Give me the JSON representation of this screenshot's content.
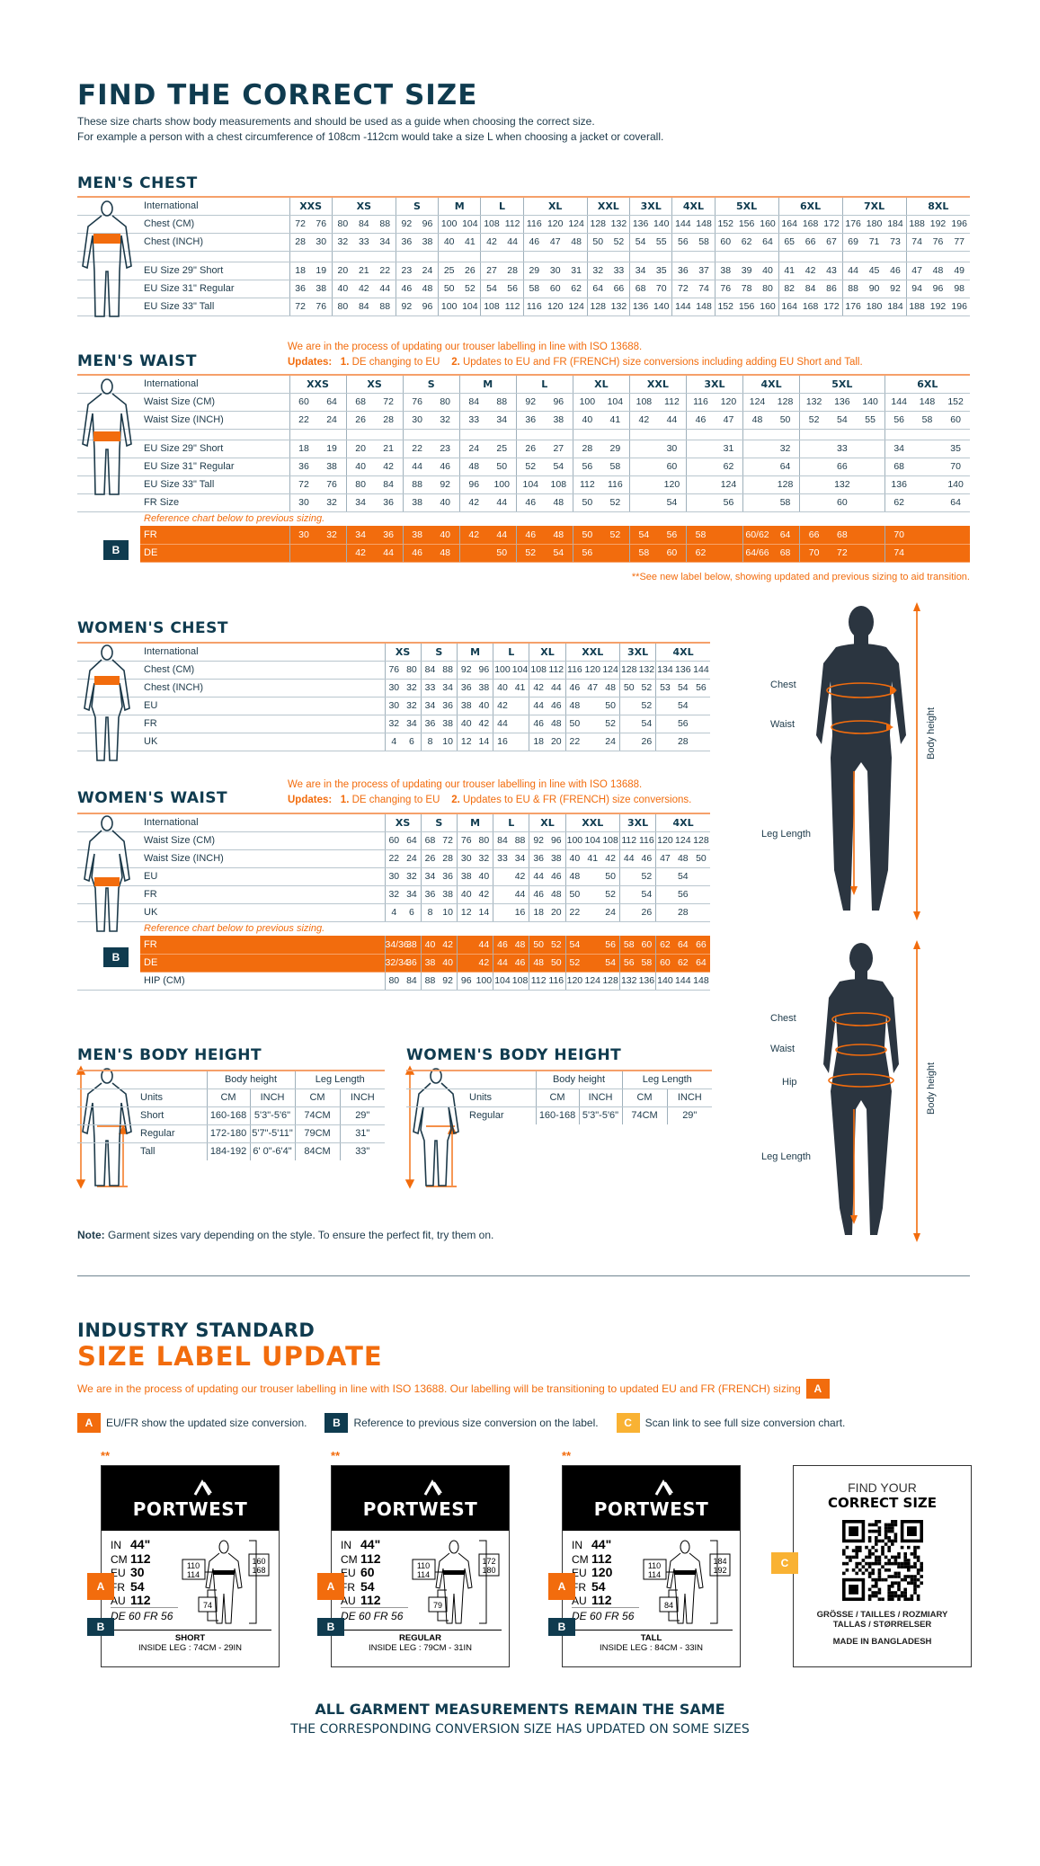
{
  "header": {
    "title": "FIND THE CORRECT SIZE",
    "intro1": "These size charts show body measurements and should be used as a guide when choosing the correct size.",
    "intro2": "For example a person with a chest circumference of 108cm -112cm would take a size L when choosing a jacket or coverall."
  },
  "colors": {
    "navy": "#0f3b4f",
    "orange": "#f26c0d",
    "yellow": "#f9b233"
  },
  "update_note": {
    "line1": "We are in the process of updating our trouser labelling in line with ISO 13688.",
    "updates": "Updates:",
    "u1_num": "1.",
    "u1": "DE changing to EU",
    "u2_num": "2.",
    "u2_men": "Updates to EU and FR (FRENCH) size conversions including adding EU Short and Tall.",
    "u2_women": "Updates to EU & FR (FRENCH) size conversions."
  },
  "reference_note": "Reference chart below to previous sizing.",
  "badge_b": "B",
  "mens_chest": {
    "title": "MEN'S CHEST",
    "header_label": "International",
    "sizes": [
      {
        "label": "XXS",
        "span": 2
      },
      {
        "label": "XS",
        "span": 3
      },
      {
        "label": "S",
        "span": 2
      },
      {
        "label": "M",
        "span": 2
      },
      {
        "label": "L",
        "span": 2
      },
      {
        "label": "XL",
        "span": 3
      },
      {
        "label": "XXL",
        "span": 2
      },
      {
        "label": "3XL",
        "span": 2
      },
      {
        "label": "4XL",
        "span": 2
      },
      {
        "label": "5XL",
        "span": 3
      },
      {
        "label": "6XL",
        "span": 3
      },
      {
        "label": "7XL",
        "span": 3
      },
      {
        "label": "8XL",
        "span": 3
      }
    ],
    "rows": [
      {
        "label": "Chest (CM)",
        "cells": [
          "72",
          "76",
          "80",
          "84",
          "88",
          "92",
          "96",
          "100",
          "104",
          "108",
          "112",
          "116",
          "120",
          "124",
          "128",
          "132",
          "136",
          "140",
          "144",
          "148",
          "152",
          "156",
          "160",
          "164",
          "168",
          "172",
          "176",
          "180",
          "184",
          "188",
          "192",
          "196"
        ]
      },
      {
        "label": "Chest (INCH)",
        "cells": [
          "28",
          "30",
          "32",
          "33",
          "34",
          "36",
          "38",
          "40",
          "41",
          "42",
          "44",
          "46",
          "47",
          "48",
          "50",
          "52",
          "54",
          "55",
          "56",
          "58",
          "60",
          "62",
          "64",
          "65",
          "66",
          "67",
          "69",
          "71",
          "73",
          "74",
          "76",
          "77"
        ]
      },
      {
        "type": "spacer"
      },
      {
        "label": "EU Size 29\" Short",
        "cells": [
          "18",
          "19",
          "20",
          "21",
          "22",
          "23",
          "24",
          "25",
          "26",
          "27",
          "28",
          "29",
          "30",
          "31",
          "32",
          "33",
          "34",
          "35",
          "36",
          "37",
          "38",
          "39",
          "40",
          "41",
          "42",
          "43",
          "44",
          "45",
          "46",
          "47",
          "48",
          "49"
        ]
      },
      {
        "label": "EU Size 31\" Regular",
        "cells": [
          "36",
          "38",
          "40",
          "42",
          "44",
          "46",
          "48",
          "50",
          "52",
          "54",
          "56",
          "58",
          "60",
          "62",
          "64",
          "66",
          "68",
          "70",
          "72",
          "74",
          "76",
          "78",
          "80",
          "82",
          "84",
          "86",
          "88",
          "90",
          "92",
          "94",
          "96",
          "98"
        ]
      },
      {
        "label": "EU Size 33\" Tall",
        "cells": [
          "72",
          "76",
          "80",
          "84",
          "88",
          "92",
          "96",
          "100",
          "104",
          "108",
          "112",
          "116",
          "120",
          "124",
          "128",
          "132",
          "136",
          "140",
          "144",
          "148",
          "152",
          "156",
          "160",
          "164",
          "168",
          "172",
          "176",
          "180",
          "184",
          "188",
          "192",
          "196"
        ]
      }
    ]
  },
  "mens_waist": {
    "title": "MEN'S WAIST",
    "header_label": "International",
    "footnote": "**See new label below, showing updated and previous sizing to aid transition.",
    "sizes": [
      {
        "label": "XXS",
        "span": 2
      },
      {
        "label": "XS",
        "span": 2
      },
      {
        "label": "S",
        "span": 2
      },
      {
        "label": "M",
        "span": 2
      },
      {
        "label": "L",
        "span": 2
      },
      {
        "label": "XL",
        "span": 2
      },
      {
        "label": "XXL",
        "span": 2
      },
      {
        "label": "3XL",
        "span": 2
      },
      {
        "label": "4XL",
        "span": 2
      },
      {
        "label": "5XL",
        "span": 3
      },
      {
        "label": "6XL",
        "span": 3
      }
    ],
    "rows": [
      {
        "label": "Waist Size (CM)",
        "cells": [
          "60",
          "64",
          "68",
          "72",
          "76",
          "80",
          "84",
          "88",
          "92",
          "96",
          "100",
          "104",
          "108",
          "112",
          "116",
          "120",
          "124",
          "128",
          "132",
          "136",
          "140",
          "144",
          "148",
          "152"
        ]
      },
      {
        "label": "Waist Size (INCH)",
        "cells": [
          "22",
          "24",
          "26",
          "28",
          "30",
          "32",
          "33",
          "34",
          "36",
          "38",
          "40",
          "41",
          "42",
          "44",
          "46",
          "47",
          "48",
          "50",
          "52",
          "54",
          "55",
          "56",
          "58",
          "60"
        ]
      },
      {
        "type": "spacer"
      },
      {
        "label": "EU Size 29\" Short",
        "cells": [
          "18",
          "19",
          "20",
          "21",
          "22",
          "23",
          "24",
          "25",
          "26",
          "27",
          "28",
          "29",
          "",
          "30",
          "",
          "31",
          "",
          "32",
          "",
          "33",
          "",
          "34",
          "",
          "35"
        ]
      },
      {
        "label": "EU Size 31\" Regular",
        "cells": [
          "36",
          "38",
          "40",
          "42",
          "44",
          "46",
          "48",
          "50",
          "52",
          "54",
          "56",
          "58",
          "",
          "60",
          "",
          "62",
          "",
          "64",
          "",
          "66",
          "",
          "68",
          "",
          "70"
        ]
      },
      {
        "label": "EU Size 33\" Tall",
        "cells": [
          "72",
          "76",
          "80",
          "84",
          "88",
          "92",
          "96",
          "100",
          "104",
          "108",
          "112",
          "116",
          "",
          "120",
          "",
          "124",
          "",
          "128",
          "",
          "132",
          "",
          "136",
          "",
          "140"
        ]
      },
      {
        "label": "FR Size",
        "cells": [
          "30",
          "32",
          "34",
          "36",
          "38",
          "40",
          "42",
          "44",
          "46",
          "48",
          "50",
          "52",
          "",
          "54",
          "",
          "56",
          "",
          "58",
          "",
          "60",
          "",
          "62",
          "",
          "64"
        ]
      },
      {
        "type": "note"
      },
      {
        "type": "orange",
        "label": "FR",
        "cells": [
          "30",
          "32",
          "34",
          "36",
          "38",
          "40",
          "42",
          "44",
          "46",
          "48",
          "50",
          "52",
          "54",
          "56",
          "58",
          "",
          "60/62",
          "64",
          "66",
          "68",
          "",
          "70",
          "",
          ""
        ]
      },
      {
        "type": "orange",
        "label": "DE",
        "cells": [
          "",
          "",
          "42",
          "44",
          "46",
          "48",
          "",
          "50",
          "52",
          "54",
          "56",
          "",
          "58",
          "60",
          "62",
          "",
          "64/66",
          "68",
          "70",
          "72",
          "",
          "74",
          "",
          ""
        ]
      }
    ]
  },
  "womens_chest": {
    "title": "WOMEN'S CHEST",
    "header_label": "International",
    "sizes": [
      {
        "label": "XS",
        "span": 2
      },
      {
        "label": "S",
        "span": 2
      },
      {
        "label": "M",
        "span": 2
      },
      {
        "label": "L",
        "span": 2
      },
      {
        "label": "XL",
        "span": 2
      },
      {
        "label": "XXL",
        "span": 3
      },
      {
        "label": "3XL",
        "span": 2
      },
      {
        "label": "4XL",
        "span": 3
      }
    ],
    "rows": [
      {
        "label": "Chest (CM)",
        "cells": [
          "76",
          "80",
          "84",
          "88",
          "92",
          "96",
          "100",
          "104",
          "108",
          "112",
          "116",
          "120",
          "124",
          "128",
          "132",
          "134",
          "136",
          "144"
        ]
      },
      {
        "label": "Chest (INCH)",
        "cells": [
          "30",
          "32",
          "33",
          "34",
          "36",
          "38",
          "40",
          "41",
          "42",
          "44",
          "46",
          "47",
          "48",
          "50",
          "52",
          "53",
          "54",
          "56"
        ]
      },
      {
        "label": "EU",
        "cells": [
          "30",
          "32",
          "34",
          "36",
          "38",
          "40",
          "42",
          "",
          "44",
          "46",
          "48",
          "",
          "50",
          "",
          "52",
          "",
          "54",
          ""
        ]
      },
      {
        "label": "FR",
        "cells": [
          "32",
          "34",
          "36",
          "38",
          "40",
          "42",
          "44",
          "",
          "46",
          "48",
          "50",
          "",
          "52",
          "",
          "54",
          "",
          "56",
          ""
        ]
      },
      {
        "label": "UK",
        "cells": [
          "4",
          "6",
          "8",
          "10",
          "12",
          "14",
          "16",
          "",
          "18",
          "20",
          "22",
          "",
          "24",
          "",
          "26",
          "",
          "28",
          ""
        ]
      }
    ]
  },
  "womens_waist": {
    "title": "WOMEN'S WAIST",
    "header_label": "International",
    "sizes": [
      {
        "label": "XS",
        "span": 2
      },
      {
        "label": "S",
        "span": 2
      },
      {
        "label": "M",
        "span": 2
      },
      {
        "label": "L",
        "span": 2
      },
      {
        "label": "XL",
        "span": 2
      },
      {
        "label": "XXL",
        "span": 3
      },
      {
        "label": "3XL",
        "span": 2
      },
      {
        "label": "4XL",
        "span": 3
      }
    ],
    "rows": [
      {
        "label": "Waist Size (CM)",
        "cells": [
          "60",
          "64",
          "68",
          "72",
          "76",
          "80",
          "84",
          "88",
          "92",
          "96",
          "100",
          "104",
          "108",
          "112",
          "116",
          "120",
          "124",
          "128"
        ]
      },
      {
        "label": "Waist Size (INCH)",
        "cells": [
          "22",
          "24",
          "26",
          "28",
          "30",
          "32",
          "33",
          "34",
          "36",
          "38",
          "40",
          "41",
          "42",
          "44",
          "46",
          "47",
          "48",
          "50"
        ]
      },
      {
        "label": "EU",
        "cells": [
          "30",
          "32",
          "34",
          "36",
          "38",
          "40",
          "",
          "42",
          "44",
          "46",
          "48",
          "",
          "50",
          "",
          "52",
          "",
          "54",
          ""
        ]
      },
      {
        "label": "FR",
        "cells": [
          "32",
          "34",
          "36",
          "38",
          "40",
          "42",
          "",
          "44",
          "46",
          "48",
          "50",
          "",
          "52",
          "",
          "54",
          "",
          "56",
          ""
        ]
      },
      {
        "label": "UK",
        "cells": [
          "4",
          "6",
          "8",
          "10",
          "12",
          "14",
          "",
          "16",
          "18",
          "20",
          "22",
          "",
          "24",
          "",
          "26",
          "",
          "28",
          ""
        ]
      },
      {
        "type": "note"
      },
      {
        "type": "orange",
        "label": "FR",
        "cells": [
          "34/36",
          "38",
          "40",
          "42",
          "",
          "44",
          "46",
          "48",
          "50",
          "52",
          "54",
          "",
          "56",
          "58",
          "60",
          "62",
          "64",
          "66"
        ]
      },
      {
        "type": "orange",
        "label": "DE",
        "cells": [
          "32/34",
          "36",
          "38",
          "40",
          "",
          "42",
          "44",
          "46",
          "48",
          "50",
          "52",
          "",
          "54",
          "56",
          "58",
          "60",
          "62",
          "64"
        ]
      },
      {
        "label": "HIP (CM)",
        "cells": [
          "80",
          "84",
          "88",
          "92",
          "96",
          "100",
          "104",
          "108",
          "112",
          "116",
          "120",
          "124",
          "128",
          "132",
          "136",
          "140",
          "144",
          "148"
        ]
      }
    ]
  },
  "mens_height": {
    "title": "MEN'S BODY HEIGHT",
    "body_height": "Body height",
    "leg_length": "Leg Length",
    "units": "Units",
    "cm": "CM",
    "inch": "INCH",
    "rows": [
      {
        "label": "Short",
        "h_cm": "160-168",
        "h_in": "5'3\"-5'6\"",
        "l_cm": "74CM",
        "l_in": "29\""
      },
      {
        "label": "Regular",
        "h_cm": "172-180",
        "h_in": "5'7\"-5'11\"",
        "l_cm": "79CM",
        "l_in": "31\""
      },
      {
        "label": "Tall",
        "h_cm": "184-192",
        "h_in": "6' 0\"-6'4\"",
        "l_cm": "84CM",
        "l_in": "33\""
      }
    ]
  },
  "womens_height": {
    "title": "WOMEN'S BODY HEIGHT",
    "body_height": "Body height",
    "leg_length": "Leg Length",
    "units": "Units",
    "cm": "CM",
    "inch": "INCH",
    "rows": [
      {
        "label": "Regular",
        "h_cm": "160-168",
        "h_in": "5'3\"-5'6\"",
        "l_cm": "74CM",
        "l_in": "29\""
      }
    ]
  },
  "figures": {
    "chest": "Chest",
    "waist": "Waist",
    "hip": "Hip",
    "leg_length": "Leg Length",
    "body_height": "Body height"
  },
  "garment_note": {
    "bold": "Note:",
    "text": " Garment sizes vary depending on the style. To ensure the perfect fit, try them on."
  },
  "label_update": {
    "title1": "INDUSTRY STANDARD",
    "title2": "SIZE LABEL UPDATE",
    "intro": "We are in the process of updating our trouser labelling in line with ISO 13688. Our labelling will be transitioning to updated EU and FR (FRENCH) sizing",
    "badge_a": "A",
    "badge_b": "B",
    "badge_c": "C",
    "legend_a": "EU/FR show the updated size conversion.",
    "legend_b": "Reference to previous size conversion on the label.",
    "legend_c": "Scan link to see full size conversion chart.",
    "stars": "**",
    "brand": "PORTWEST",
    "cards": [
      {
        "in": "44\"",
        "cm": "112",
        "eu": "30",
        "fr": "54",
        "au": "112",
        "prev": "DE 60 FR 56",
        "waist1": "110",
        "waist2": "114",
        "height1": "160",
        "height2": "168",
        "leg": "74",
        "fit": "SHORT",
        "inside_leg": "INSIDE LEG : 74CM - 29IN"
      },
      {
        "in": "44\"",
        "cm": "112",
        "eu": "60",
        "fr": "54",
        "au": "112",
        "prev": "DE 60 FR 56",
        "waist1": "110",
        "waist2": "114",
        "height1": "172",
        "height2": "180",
        "leg": "79",
        "fit": "REGULAR",
        "inside_leg": "INSIDE LEG : 79CM - 31IN"
      },
      {
        "in": "44\"",
        "cm": "112",
        "eu": "120",
        "fr": "54",
        "au": "112",
        "prev": "DE 60 FR 56",
        "waist1": "110",
        "waist2": "114",
        "height1": "184",
        "height2": "192",
        "leg": "84",
        "fit": "TALL",
        "inside_leg": "INSIDE LEG : 84CM - 33IN"
      }
    ],
    "keys": {
      "in": "IN",
      "cm": "CM",
      "eu": "EU",
      "fr": "FR",
      "au": "AU"
    },
    "qr": {
      "find": "FIND YOUR",
      "correct": "CORRECT SIZE",
      "langs1": "GRÖSSE / TAILLES / ROZMIARY",
      "langs2": "TALLAS  / STØRRELSER",
      "made": "MADE IN BANGLADESH"
    }
  },
  "footer": {
    "line1": "ALL GARMENT MEASUREMENTS REMAIN THE SAME",
    "line2": "THE CORRESPONDING CONVERSION SIZE HAS UPDATED ON SOME SIZES"
  }
}
